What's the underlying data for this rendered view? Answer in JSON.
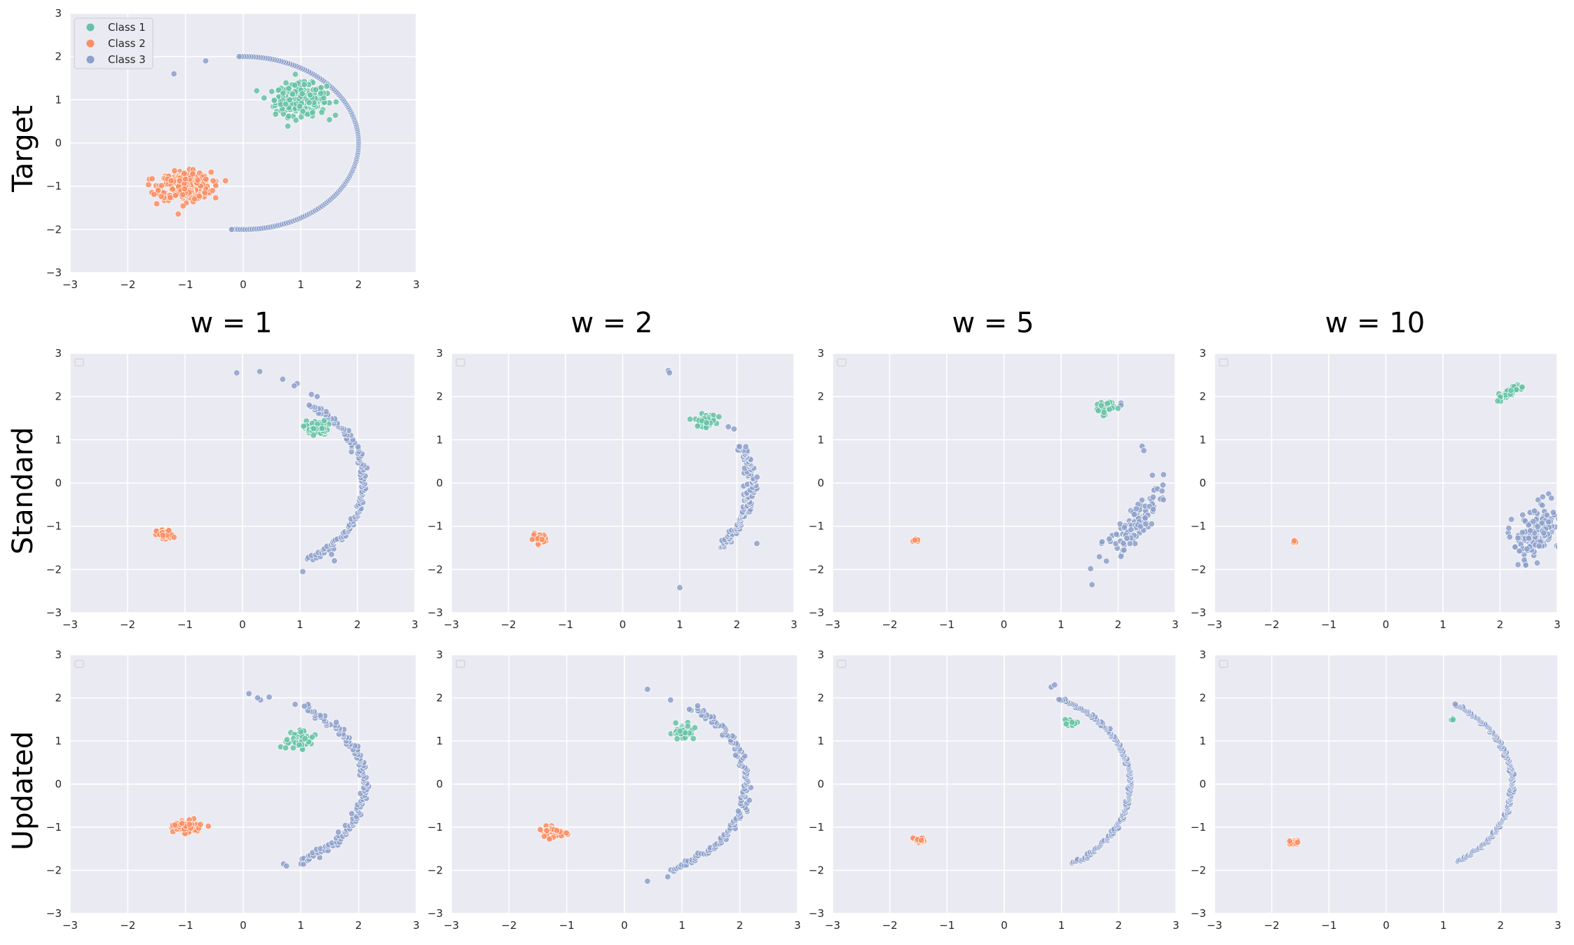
{
  "colors": {
    "Class 1": "#66c2a5",
    "Class 2": "#fc8d62",
    "Class 3": "#8da0cb",
    "panel_bg": "#eaeaf2",
    "grid": "#ffffff"
  },
  "figure": {
    "column_titles": [
      "w = 1",
      "w = 2",
      "w = 5",
      "w = 10"
    ],
    "row_titles": [
      "Target",
      "Standard",
      "Updated"
    ],
    "legend": [
      "Class 1",
      "Class 2",
      "Class 3"
    ]
  },
  "chart_data": [
    {
      "type": "scatter",
      "row": "Target",
      "column": "",
      "xlim": [
        -3,
        3
      ],
      "ylim": [
        -3,
        3
      ],
      "xticks": [
        -3,
        -2,
        -1,
        0,
        1,
        2,
        3
      ],
      "yticks": [
        -3,
        -2,
        -1,
        0,
        1,
        2,
        3
      ],
      "grid": true,
      "legend": "top-left",
      "series": [
        {
          "name": "Class 1",
          "shape": "blob",
          "cx": 1.0,
          "cy": 1.0,
          "sx": 0.22,
          "sy": 0.18,
          "n": 320
        },
        {
          "name": "Class 2",
          "shape": "blob",
          "cx": -1.0,
          "cy": -1.0,
          "sx": 0.22,
          "sy": 0.16,
          "n": 320
        },
        {
          "name": "Class 3",
          "shape": "arc",
          "r": 2.0,
          "cx": 0.0,
          "cy": 0.0,
          "theta": [
            -95,
            92
          ],
          "n": 160,
          "jitter": 0.0,
          "extra": [
            [
              -1.2,
              1.6
            ],
            [
              -0.65,
              1.9
            ],
            [
              -0.2,
              -2.0
            ]
          ]
        }
      ]
    },
    {
      "type": "scatter",
      "row": "Standard",
      "column": "w = 1",
      "xlim": [
        -3,
        3
      ],
      "ylim": [
        -3,
        3
      ],
      "xticks": [
        -3,
        -2,
        -1,
        0,
        1,
        2,
        3
      ],
      "yticks": [
        -3,
        -2,
        -1,
        0,
        1,
        2,
        3
      ],
      "grid": true,
      "series": [
        {
          "name": "Class 1",
          "shape": "blob",
          "cx": 1.28,
          "cy": 1.28,
          "sx": 0.1,
          "sy": 0.08,
          "n": 60
        },
        {
          "name": "Class 2",
          "shape": "blob",
          "cx": -1.35,
          "cy": -1.2,
          "sx": 0.07,
          "sy": 0.06,
          "n": 50
        },
        {
          "name": "Class 3",
          "shape": "arc",
          "r": 2.2,
          "cx": -0.1,
          "cy": 0.0,
          "theta": [
            -55,
            55
          ],
          "n": 120,
          "jitter": 0.04,
          "extra": [
            [
              -0.1,
              2.55
            ],
            [
              0.3,
              2.58
            ],
            [
              0.7,
              2.4
            ],
            [
              0.95,
              2.3
            ],
            [
              0.9,
              2.25
            ],
            [
              1.2,
              2.05
            ],
            [
              1.3,
              2.0
            ],
            [
              1.05,
              -2.05
            ],
            [
              1.55,
              -1.65
            ],
            [
              1.6,
              -1.8
            ]
          ]
        }
      ]
    },
    {
      "type": "scatter",
      "row": "Standard",
      "column": "w = 2",
      "xlim": [
        -3,
        3
      ],
      "ylim": [
        -3,
        3
      ],
      "xticks": [
        -3,
        -2,
        -1,
        0,
        1,
        2,
        3
      ],
      "yticks": [
        -3,
        -2,
        -1,
        0,
        1,
        2,
        3
      ],
      "grid": true,
      "series": [
        {
          "name": "Class 1",
          "shape": "blob",
          "cx": 1.45,
          "cy": 1.45,
          "sx": 0.09,
          "sy": 0.07,
          "n": 50
        },
        {
          "name": "Class 2",
          "shape": "blob",
          "cx": -1.45,
          "cy": -1.28,
          "sx": 0.06,
          "sy": 0.05,
          "n": 45
        },
        {
          "name": "Class 3",
          "shape": "arc",
          "r": 2.3,
          "cx": -0.05,
          "cy": 0.0,
          "theta": [
            -40,
            22
          ],
          "n": 110,
          "jitter": 0.05,
          "extra": [
            [
              0.8,
              2.6
            ],
            [
              0.82,
              2.55
            ],
            [
              1.85,
              1.3
            ],
            [
              1.95,
              1.25
            ],
            [
              1.0,
              -2.42
            ],
            [
              2.35,
              -1.4
            ]
          ]
        }
      ]
    },
    {
      "type": "scatter",
      "row": "Standard",
      "column": "w = 5",
      "xlim": [
        -3,
        3
      ],
      "ylim": [
        -3,
        3
      ],
      "xticks": [
        -3,
        -2,
        -1,
        0,
        1,
        2,
        3
      ],
      "yticks": [
        -3,
        -2,
        -1,
        0,
        1,
        2,
        3
      ],
      "grid": true,
      "series": [
        {
          "name": "Class 1",
          "shape": "blob",
          "cx": 1.75,
          "cy": 1.75,
          "sx": 0.09,
          "sy": 0.08,
          "n": 30
        },
        {
          "name": "Class 2",
          "shape": "blob",
          "cx": -1.55,
          "cy": -1.32,
          "sx": 0.02,
          "sy": 0.02,
          "n": 8
        },
        {
          "name": "Class 3",
          "shape": "cloud",
          "cx": 2.35,
          "cy": -0.85,
          "sx": 0.12,
          "sy": 0.4,
          "tilt": 0.55,
          "n": 110,
          "extra": [
            [
              2.42,
              0.85
            ],
            [
              2.45,
              0.75
            ],
            [
              2.6,
              0.18
            ],
            [
              2.05,
              -1.7
            ],
            [
              2.05,
              1.85
            ],
            [
              2.05,
              1.8
            ]
          ]
        }
      ]
    },
    {
      "type": "scatter",
      "row": "Standard",
      "column": "w = 10",
      "xlim": [
        -3,
        3
      ],
      "ylim": [
        -3,
        3
      ],
      "xticks": [
        -3,
        -2,
        -1,
        0,
        1,
        2,
        3
      ],
      "yticks": [
        -3,
        -2,
        -1,
        0,
        1,
        2,
        3
      ],
      "grid": true,
      "series": [
        {
          "name": "Class 1",
          "shape": "band",
          "x0": 1.95,
          "y0": 1.92,
          "x1": 2.4,
          "y1": 2.28,
          "w": 0.04,
          "n": 35
        },
        {
          "name": "Class 2",
          "shape": "blob",
          "cx": -1.6,
          "cy": -1.35,
          "sx": 0.015,
          "sy": 0.015,
          "n": 5
        },
        {
          "name": "Class 3",
          "shape": "cloud",
          "cx": 2.62,
          "cy": -1.15,
          "sx": 0.2,
          "sy": 0.28,
          "tilt": 0.25,
          "n": 170,
          "extra": [
            [
              2.85,
              -0.25
            ],
            [
              2.9,
              -0.35
            ],
            [
              2.45,
              -1.9
            ],
            [
              2.65,
              -1.85
            ],
            [
              2.85,
              -0.9
            ]
          ]
        }
      ]
    },
    {
      "type": "scatter",
      "row": "Updated",
      "column": "w = 1",
      "xlim": [
        -3,
        3
      ],
      "ylim": [
        -3,
        3
      ],
      "xticks": [
        -3,
        -2,
        -1,
        0,
        1,
        2,
        3
      ],
      "yticks": [
        -3,
        -2,
        -1,
        0,
        1,
        2,
        3
      ],
      "grid": true,
      "series": [
        {
          "name": "Class 1",
          "shape": "blob",
          "cx": 0.98,
          "cy": 0.98,
          "sx": 0.11,
          "sy": 0.1,
          "n": 70
        },
        {
          "name": "Class 2",
          "shape": "blob",
          "cx": -0.98,
          "cy": -0.98,
          "sx": 0.12,
          "sy": 0.08,
          "n": 70
        },
        {
          "name": "Class 3",
          "shape": "arc",
          "r": 2.0,
          "cx": 0.1,
          "cy": 0.0,
          "theta": [
            -64,
            62
          ],
          "n": 130,
          "jitter": 0.05,
          "extra": [
            [
              0.1,
              2.1
            ],
            [
              0.3,
              1.95
            ],
            [
              0.25,
              2.0
            ],
            [
              0.45,
              2.02
            ],
            [
              0.7,
              -1.85
            ],
            [
              0.75,
              -1.9
            ],
            [
              0.9,
              1.85
            ]
          ]
        }
      ]
    },
    {
      "type": "scatter",
      "row": "Updated",
      "column": "w = 2",
      "xlim": [
        -3,
        3
      ],
      "ylim": [
        -3,
        3
      ],
      "xticks": [
        -3,
        -2,
        -1,
        0,
        1,
        2,
        3
      ],
      "yticks": [
        -3,
        -2,
        -1,
        0,
        1,
        2,
        3
      ],
      "grid": true,
      "series": [
        {
          "name": "Class 1",
          "shape": "blob",
          "cx": 1.02,
          "cy": 1.2,
          "sx": 0.08,
          "sy": 0.08,
          "n": 45
        },
        {
          "name": "Class 2",
          "shape": "blob",
          "cx": -1.22,
          "cy": -1.12,
          "sx": 0.09,
          "sy": 0.06,
          "n": 60
        },
        {
          "name": "Class 3",
          "shape": "arc",
          "r": 2.12,
          "cx": 0.0,
          "cy": 0.0,
          "theta": [
            -68,
            57
          ],
          "n": 130,
          "jitter": 0.04,
          "extra": [
            [
              0.4,
              2.2
            ],
            [
              0.4,
              -2.25
            ],
            [
              0.75,
              -2.15
            ],
            [
              0.8,
              1.95
            ]
          ]
        }
      ]
    },
    {
      "type": "scatter",
      "row": "Updated",
      "column": "w = 5",
      "xlim": [
        -3,
        3
      ],
      "ylim": [
        -3,
        3
      ],
      "xticks": [
        -3,
        -2,
        -1,
        0,
        1,
        2,
        3
      ],
      "yticks": [
        -3,
        -2,
        -1,
        0,
        1,
        2,
        3
      ],
      "grid": true,
      "series": [
        {
          "name": "Class 1",
          "shape": "blob",
          "cx": 1.15,
          "cy": 1.42,
          "sx": 0.05,
          "sy": 0.05,
          "n": 25
        },
        {
          "name": "Class 2",
          "shape": "blob",
          "cx": -1.48,
          "cy": -1.3,
          "sx": 0.06,
          "sy": 0.04,
          "n": 35
        },
        {
          "name": "Class 3",
          "shape": "arc",
          "r": 2.2,
          "cx": 0.0,
          "cy": 0.0,
          "theta": [
            -57,
            64
          ],
          "n": 150,
          "jitter": 0.02,
          "extra": [
            [
              0.82,
              2.25
            ],
            [
              0.88,
              2.3
            ]
          ]
        }
      ]
    },
    {
      "type": "scatter",
      "row": "Updated",
      "column": "w = 10",
      "xlim": [
        -3,
        3
      ],
      "ylim": [
        -3,
        3
      ],
      "xticks": [
        -3,
        -2,
        -1,
        0,
        1,
        2,
        3
      ],
      "yticks": [
        -3,
        -2,
        -1,
        0,
        1,
        2,
        3
      ],
      "grid": true,
      "series": [
        {
          "name": "Class 1",
          "shape": "blob",
          "cx": 1.17,
          "cy": 1.5,
          "sx": 0.02,
          "sy": 0.02,
          "n": 6
        },
        {
          "name": "Class 2",
          "shape": "blob",
          "cx": -1.62,
          "cy": -1.35,
          "sx": 0.05,
          "sy": 0.03,
          "n": 25
        },
        {
          "name": "Class 3",
          "shape": "arc",
          "r": 2.2,
          "cx": 0.0,
          "cy": 0.0,
          "theta": [
            -55,
            57
          ],
          "n": 150,
          "jitter": 0.015,
          "extra": []
        }
      ]
    }
  ]
}
